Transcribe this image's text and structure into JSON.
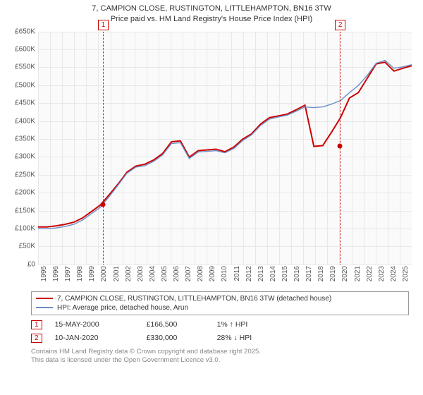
{
  "title": {
    "line1": "7, CAMPION CLOSE, RUSTINGTON, LITTLEHAMPTON, BN16 3TW",
    "line2": "Price paid vs. HM Land Registry's House Price Index (HPI)"
  },
  "chart": {
    "background_color": "#fafafa",
    "grid_color": "#e8e8e8",
    "ylim": [
      0,
      650
    ],
    "ytick_step": 50,
    "yticks": [
      "£0",
      "£50K",
      "£100K",
      "£150K",
      "£200K",
      "£250K",
      "£300K",
      "£350K",
      "£400K",
      "£450K",
      "£500K",
      "£550K",
      "£600K",
      "£650K"
    ],
    "x_start_year": 1995,
    "x_end_year": 2025,
    "xticks": [
      "1995",
      "1996",
      "1997",
      "1998",
      "1999",
      "2000",
      "2001",
      "2002",
      "2003",
      "2004",
      "2005",
      "2006",
      "2007",
      "2008",
      "2009",
      "2010",
      "2011",
      "2012",
      "2013",
      "2014",
      "2015",
      "2016",
      "2017",
      "2018",
      "2019",
      "2020",
      "2021",
      "2022",
      "2023",
      "2024",
      "2025"
    ],
    "series": [
      {
        "name": "property",
        "color": "#cc0000",
        "width": 2,
        "values": [
          105,
          105,
          108,
          112,
          118,
          130,
          148,
          166,
          195,
          225,
          258,
          275,
          280,
          292,
          310,
          343,
          345,
          300,
          318,
          320,
          322,
          315,
          328,
          350,
          365,
          392,
          410,
          415,
          420,
          432,
          445,
          330,
          332,
          370,
          410,
          465,
          480,
          520,
          560,
          565,
          540,
          548,
          555
        ]
      },
      {
        "name": "hpi",
        "color": "#6a8fc7",
        "width": 1.4,
        "values": [
          100,
          100,
          102,
          106,
          112,
          124,
          142,
          160,
          190,
          222,
          255,
          272,
          276,
          288,
          306,
          338,
          340,
          296,
          314,
          316,
          318,
          312,
          324,
          346,
          362,
          388,
          406,
          412,
          417,
          428,
          440,
          438,
          440,
          448,
          458,
          480,
          500,
          528,
          562,
          570,
          548,
          552,
          558
        ]
      }
    ],
    "events": [
      {
        "id": "1",
        "year_frac": 2000.37,
        "value": 166.5
      },
      {
        "id": "2",
        "year_frac": 2020.03,
        "value": 330
      }
    ]
  },
  "legend": {
    "items": [
      {
        "color": "#cc0000",
        "label": "7, CAMPION CLOSE, RUSTINGTON, LITTLEHAMPTON, BN16 3TW (detached house)"
      },
      {
        "color": "#6a8fc7",
        "label": "HPI: Average price, detached house, Arun"
      }
    ]
  },
  "events_table": [
    {
      "id": "1",
      "date": "15-MAY-2000",
      "price": "£166,500",
      "pct": "1% ↑ HPI"
    },
    {
      "id": "2",
      "date": "10-JAN-2020",
      "price": "£330,000",
      "pct": "28% ↓ HPI"
    }
  ],
  "license": {
    "line1": "Contains HM Land Registry data © Crown copyright and database right 2025.",
    "line2": "This data is licensed under the Open Government Licence v3.0."
  }
}
